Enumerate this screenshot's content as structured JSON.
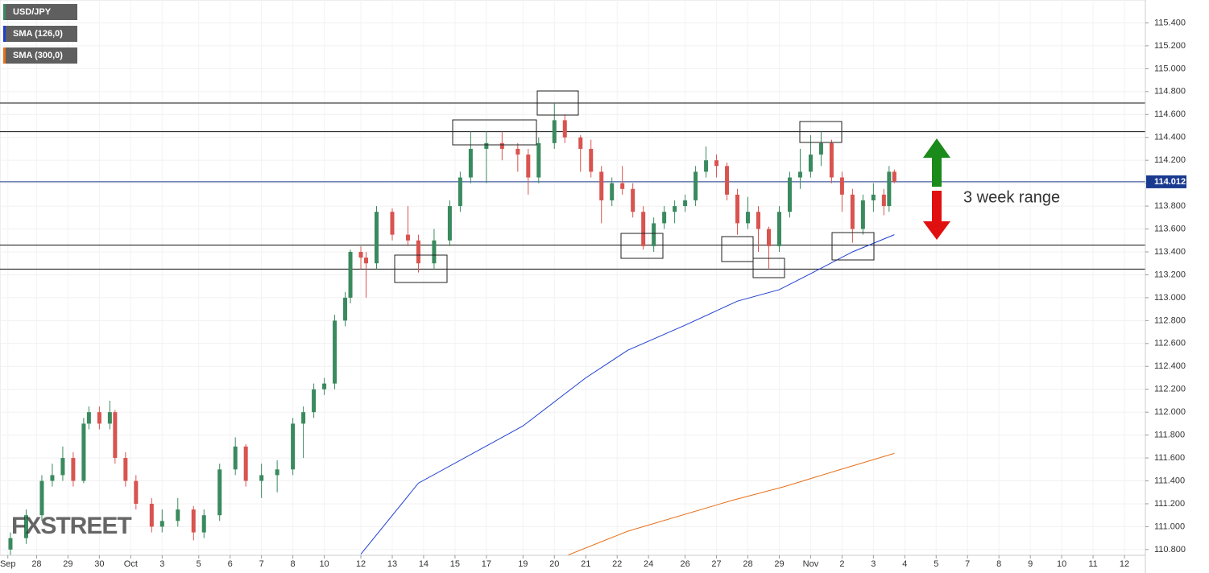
{
  "chart_data": {
    "type": "candlestick",
    "annotation": "3 week range",
    "watermark": "FXSTREET",
    "up_color": "#3a8a5f",
    "down_color": "#d9534f",
    "grid": true,
    "xlim": [
      0,
      219
    ],
    "ylim": [
      110.75,
      115.6
    ],
    "xticks": [
      {
        "value": 1.5,
        "label": "Sep"
      },
      {
        "value": 7,
        "label": "28"
      },
      {
        "value": 13,
        "label": "29"
      },
      {
        "value": 19,
        "label": "30"
      },
      {
        "value": 25,
        "label": "Oct"
      },
      {
        "value": 31,
        "label": "3"
      },
      {
        "value": 38,
        "label": "5"
      },
      {
        "value": 44,
        "label": "6"
      },
      {
        "value": 50,
        "label": "7"
      },
      {
        "value": 56,
        "label": "8"
      },
      {
        "value": 62,
        "label": "10"
      },
      {
        "value": 69,
        "label": "12"
      },
      {
        "value": 75,
        "label": "13"
      },
      {
        "value": 81,
        "label": "14"
      },
      {
        "value": 87,
        "label": "15"
      },
      {
        "value": 93,
        "label": "17"
      },
      {
        "value": 100,
        "label": "19"
      },
      {
        "value": 106,
        "label": "20"
      },
      {
        "value": 112,
        "label": "21"
      },
      {
        "value": 118,
        "label": "22"
      },
      {
        "value": 124,
        "label": "24"
      },
      {
        "value": 131,
        "label": "26"
      },
      {
        "value": 137,
        "label": "27"
      },
      {
        "value": 143,
        "label": "28"
      },
      {
        "value": 149,
        "label": "29"
      },
      {
        "value": 155,
        "label": "Nov"
      },
      {
        "value": 161,
        "label": "2"
      },
      {
        "value": 167,
        "label": "3"
      },
      {
        "value": 173,
        "label": "4"
      },
      {
        "value": 179,
        "label": "5"
      },
      {
        "value": 185,
        "label": "7"
      },
      {
        "value": 191,
        "label": "8"
      },
      {
        "value": 197,
        "label": "9"
      },
      {
        "value": 203,
        "label": "10"
      },
      {
        "value": 209,
        "label": "11"
      },
      {
        "value": 215,
        "label": "12"
      }
    ],
    "yticks": [
      {
        "value": 110.8,
        "label": "110.800"
      },
      {
        "value": 111.0,
        "label": "111.000"
      },
      {
        "value": 111.2,
        "label": "111.200"
      },
      {
        "value": 111.4,
        "label": "111.400"
      },
      {
        "value": 111.6,
        "label": "111.600"
      },
      {
        "value": 111.8,
        "label": "111.800"
      },
      {
        "value": 112.0,
        "label": "112.000"
      },
      {
        "value": 112.2,
        "label": "112.200"
      },
      {
        "value": 112.4,
        "label": "112.400"
      },
      {
        "value": 112.6,
        "label": "112.600"
      },
      {
        "value": 112.8,
        "label": "112.800"
      },
      {
        "value": 113.0,
        "label": "113.000"
      },
      {
        "value": 113.2,
        "label": "113.200"
      },
      {
        "value": 113.4,
        "label": "113.400"
      },
      {
        "value": 113.6,
        "label": "113.600"
      },
      {
        "value": 113.8,
        "label": "113.800"
      },
      {
        "value": 114.0,
        "label": "114.000"
      },
      {
        "value": 114.2,
        "label": "114.200"
      },
      {
        "value": 114.4,
        "label": "114.400"
      },
      {
        "value": 114.6,
        "label": "114.600"
      },
      {
        "value": 114.8,
        "label": "114.800"
      },
      {
        "value": 115.0,
        "label": "115.000"
      },
      {
        "value": 115.2,
        "label": "115.200"
      },
      {
        "value": 115.4,
        "label": "115.400"
      }
    ],
    "hlines": [
      114.7,
      114.45,
      113.46,
      113.25
    ],
    "last_price": 114.012,
    "last_price_color": "#1a3a8f",
    "series": [
      {
        "name": "USD/JPY",
        "color": "#3a8a5f",
        "x": [
          2,
          5,
          8,
          10,
          12,
          14,
          16,
          17,
          19,
          21,
          22,
          24,
          26,
          29,
          31,
          34,
          37,
          39,
          42,
          45,
          47,
          50,
          53,
          56,
          58,
          60,
          62,
          64,
          66,
          67,
          69,
          70,
          72,
          75,
          78,
          80,
          83,
          86,
          88,
          90,
          93,
          96,
          99,
          101,
          103,
          106,
          108,
          111,
          113,
          115,
          117,
          119,
          121,
          123,
          125,
          127,
          129,
          131,
          133,
          135,
          137,
          139,
          141,
          143,
          145,
          147,
          149,
          151,
          153,
          155,
          157,
          159,
          161,
          163,
          165,
          167,
          169,
          170,
          171
        ],
        "open": [
          110.8,
          110.9,
          111.1,
          111.4,
          111.45,
          111.6,
          111.4,
          111.9,
          112.0,
          111.9,
          112.0,
          111.6,
          111.4,
          111.2,
          111.0,
          111.05,
          111.15,
          110.95,
          111.1,
          111.5,
          111.7,
          111.4,
          111.45,
          111.5,
          111.9,
          112.0,
          112.2,
          112.25,
          112.8,
          113.0,
          113.4,
          113.35,
          113.3,
          113.75,
          113.55,
          113.5,
          113.3,
          113.5,
          113.8,
          114.05,
          114.3,
          114.35,
          114.3,
          114.25,
          114.05,
          114.35,
          114.55,
          114.4,
          114.3,
          114.1,
          113.85,
          114.0,
          113.95,
          113.75,
          113.45,
          113.65,
          113.75,
          113.8,
          113.85,
          114.1,
          114.2,
          114.15,
          113.9,
          113.65,
          113.75,
          113.6,
          113.45,
          113.75,
          114.05,
          114.1,
          114.25,
          114.35,
          114.05,
          113.9,
          113.6,
          113.85,
          113.9,
          113.8,
          114.1
        ],
        "high": [
          110.95,
          111.15,
          111.45,
          111.55,
          111.7,
          111.65,
          111.95,
          112.05,
          112.05,
          112.1,
          112.02,
          111.65,
          111.45,
          111.25,
          111.15,
          111.25,
          111.18,
          111.15,
          111.55,
          111.78,
          111.72,
          111.55,
          111.58,
          111.95,
          112.05,
          112.25,
          112.3,
          112.85,
          113.05,
          113.42,
          113.45,
          113.4,
          113.8,
          113.78,
          113.8,
          113.55,
          113.6,
          113.85,
          114.1,
          114.45,
          114.45,
          114.45,
          114.35,
          114.3,
          114.4,
          114.7,
          114.6,
          114.42,
          114.38,
          114.15,
          114.05,
          114.15,
          114.0,
          113.8,
          113.7,
          113.8,
          113.85,
          113.9,
          114.15,
          114.32,
          114.25,
          114.18,
          113.95,
          113.88,
          113.8,
          113.62,
          113.8,
          114.1,
          114.3,
          114.42,
          114.45,
          114.38,
          114.1,
          113.95,
          113.9,
          114.0,
          113.95,
          114.15,
          114.12
        ],
        "low": [
          110.75,
          110.85,
          111.05,
          111.35,
          111.4,
          111.35,
          111.38,
          111.85,
          111.85,
          111.85,
          111.55,
          111.35,
          111.15,
          110.95,
          110.95,
          111.0,
          110.88,
          110.9,
          111.05,
          111.45,
          111.35,
          111.25,
          111.3,
          111.45,
          111.6,
          111.95,
          112.15,
          112.2,
          112.75,
          112.95,
          113.25,
          113.0,
          113.25,
          113.5,
          113.45,
          113.22,
          113.25,
          113.45,
          113.75,
          114.0,
          114.0,
          114.2,
          114.1,
          113.9,
          114.0,
          114.3,
          114.35,
          114.1,
          114.05,
          113.65,
          113.8,
          113.9,
          113.7,
          113.42,
          113.4,
          113.6,
          113.65,
          113.75,
          113.8,
          114.05,
          114.05,
          113.85,
          113.55,
          113.6,
          113.4,
          113.25,
          113.4,
          113.7,
          113.95,
          114.05,
          114.15,
          114.0,
          113.75,
          113.48,
          113.55,
          113.75,
          113.72,
          113.75,
          114.0
        ],
        "close": [
          110.9,
          111.1,
          111.4,
          111.45,
          111.6,
          111.4,
          111.9,
          112.0,
          111.9,
          112.0,
          111.6,
          111.4,
          111.2,
          111.0,
          111.05,
          111.15,
          110.95,
          111.1,
          111.5,
          111.7,
          111.4,
          111.45,
          111.5,
          111.9,
          112.0,
          112.2,
          112.25,
          112.8,
          113.0,
          113.4,
          113.35,
          113.3,
          113.75,
          113.55,
          113.5,
          113.3,
          113.5,
          113.8,
          114.05,
          114.3,
          114.35,
          114.3,
          114.25,
          114.05,
          114.35,
          114.55,
          114.4,
          114.3,
          114.1,
          113.85,
          114.0,
          113.95,
          113.75,
          113.45,
          113.65,
          113.75,
          113.8,
          113.85,
          114.1,
          114.2,
          114.15,
          113.9,
          113.65,
          113.75,
          113.6,
          113.45,
          113.75,
          114.05,
          114.1,
          114.25,
          114.35,
          114.05,
          113.9,
          113.6,
          113.85,
          113.9,
          113.8,
          114.1,
          114.012
        ]
      },
      {
        "name": "SMA (126,0)",
        "color": "#1f3fd1",
        "x": [
          69,
          80,
          100,
          112,
          120,
          131,
          141,
          149,
          155,
          163,
          171
        ],
        "values": [
          110.76,
          111.38,
          111.88,
          112.3,
          112.54,
          112.76,
          112.97,
          113.07,
          113.21,
          113.4,
          113.55
        ]
      },
      {
        "name": "SMA (300,0)",
        "color": "#e8701a",
        "x": [
          108.5,
          120,
          140,
          150,
          160,
          171
        ],
        "values": [
          110.75,
          110.96,
          111.23,
          111.35,
          111.49,
          111.64
        ]
      }
    ]
  }
}
